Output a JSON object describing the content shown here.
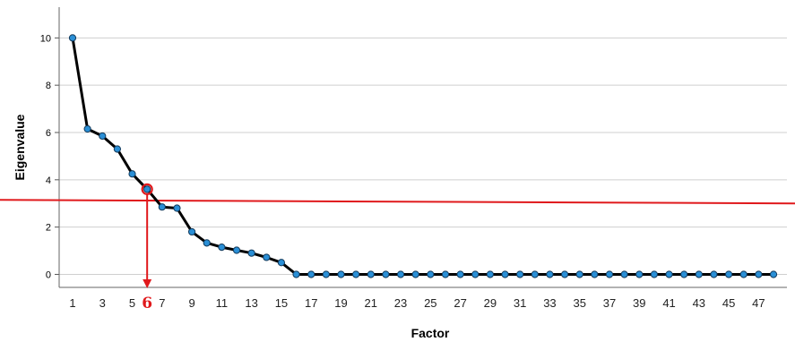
{
  "chart_data": {
    "type": "line",
    "xlabel": "Factor",
    "ylabel": "Eigenvalue",
    "x": [
      1,
      2,
      3,
      4,
      5,
      6,
      7,
      8,
      9,
      10,
      11,
      12,
      13,
      14,
      15,
      16,
      17,
      18,
      19,
      20,
      21,
      22,
      23,
      24,
      25,
      26,
      27,
      28,
      29,
      30,
      31,
      32,
      33,
      34,
      35,
      36,
      37,
      38,
      39,
      40,
      41,
      42,
      43,
      44,
      45,
      46,
      47,
      48
    ],
    "series": [
      {
        "values": [
          10.0,
          6.15,
          5.85,
          5.3,
          4.25,
          3.6,
          2.85,
          2.8,
          1.8,
          1.33,
          1.15,
          1.02,
          0.9,
          0.72,
          0.5,
          0.0,
          0.0,
          0.0,
          0.0,
          0.0,
          0.0,
          0.0,
          0.0,
          0.0,
          0.0,
          0.0,
          0.0,
          0.0,
          0.0,
          0.0,
          0.0,
          0.0,
          0.0,
          0.0,
          0.0,
          0.0,
          0.0,
          0.0,
          0.0,
          0.0,
          0.0,
          0.0,
          0.0,
          0.0,
          0.0,
          0.0,
          0.0,
          0.0
        ],
        "line_color": "#000000",
        "marker_color": "#2a8fd6"
      }
    ],
    "x_tick_labels": [
      "1",
      "3",
      "5",
      "7",
      "9",
      "11",
      "13",
      "15",
      "17",
      "19",
      "21",
      "23",
      "25",
      "27",
      "29",
      "31",
      "33",
      "35",
      "37",
      "39",
      "41",
      "43",
      "45",
      "47"
    ],
    "y_ticks": [
      0,
      2,
      4,
      6,
      8,
      10
    ],
    "y_tick_labels": [
      "0",
      "2",
      "4",
      "6",
      "8",
      "10"
    ],
    "xlim": [
      0.1,
      48.9
    ],
    "ylim": [
      -0.55,
      11.3
    ],
    "grid": "horizontal",
    "legend": "none",
    "annotations": {
      "threshold_line": {
        "y_start": 3.15,
        "y_end": 3.0,
        "color": "#e0191c"
      },
      "highlight_point": {
        "x": 6,
        "y": 3.6,
        "color": "#e0191c"
      },
      "arrow": {
        "x": 6,
        "color": "#e0191c"
      },
      "label": {
        "text": "6",
        "color": "#e0191c"
      }
    }
  }
}
